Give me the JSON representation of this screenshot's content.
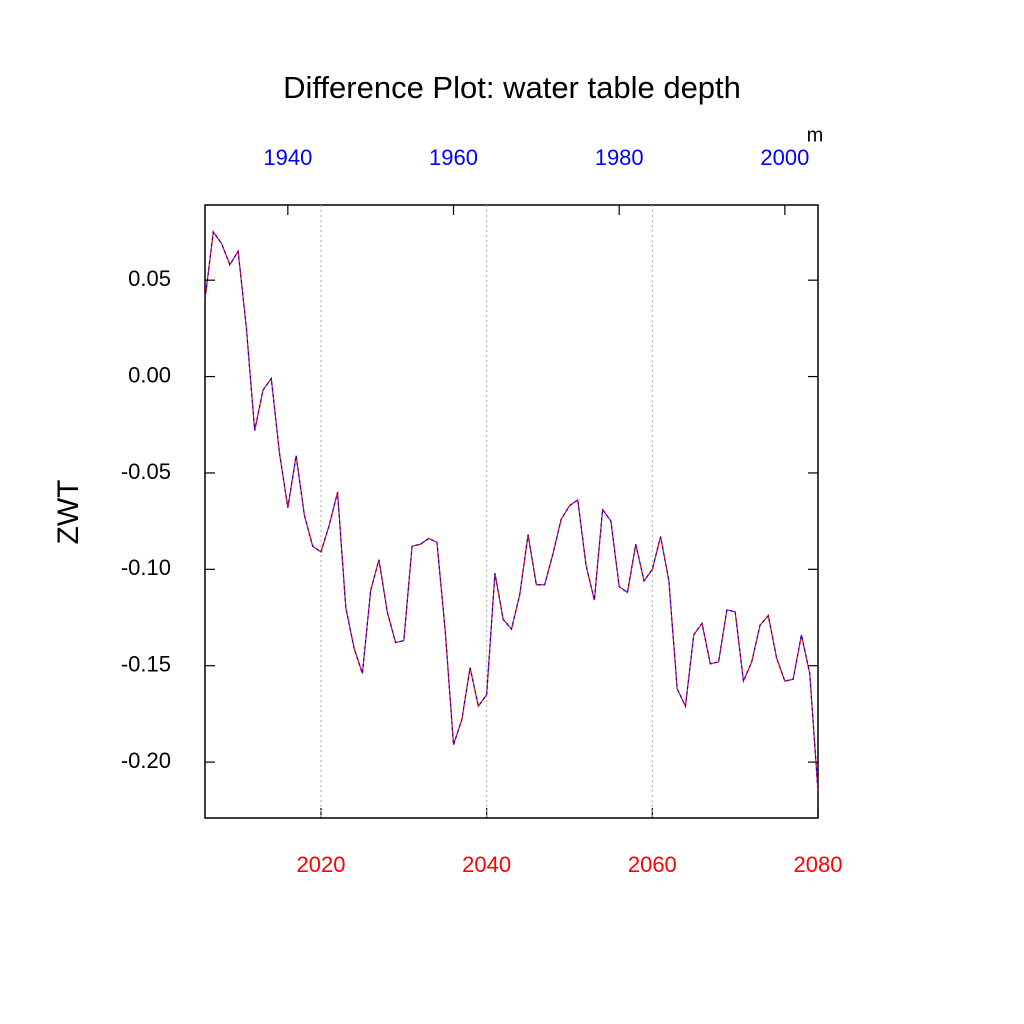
{
  "chart_data": {
    "type": "line",
    "title": "Difference Plot: water table depth",
    "y_label": "ZWT",
    "units": "m",
    "x": [
      2006,
      2007,
      2008,
      2009,
      2010,
      2011,
      2012,
      2013,
      2014,
      2015,
      2016,
      2017,
      2018,
      2019,
      2020,
      2021,
      2022,
      2023,
      2024,
      2025,
      2026,
      2027,
      2028,
      2029,
      2030,
      2031,
      2032,
      2033,
      2034,
      2035,
      2036,
      2037,
      2038,
      2039,
      2040,
      2041,
      2042,
      2043,
      2044,
      2045,
      2046,
      2047,
      2048,
      2049,
      2050,
      2051,
      2052,
      2053,
      2054,
      2055,
      2056,
      2057,
      2058,
      2059,
      2060,
      2061,
      2062,
      2063,
      2064,
      2065,
      2066,
      2067,
      2068,
      2069,
      2070,
      2071,
      2072,
      2073,
      2074,
      2075,
      2076,
      2077,
      2078,
      2079,
      2080
    ],
    "series": [
      {
        "color": "#ff0000",
        "dash_color": "#0000ff",
        "values": [
          0.04,
          0.075,
          0.069,
          0.058,
          0.065,
          0.025,
          -0.028,
          -0.007,
          -0.001,
          -0.04,
          -0.068,
          -0.041,
          -0.072,
          -0.088,
          -0.091,
          -0.077,
          -0.06,
          -0.12,
          -0.141,
          -0.154,
          -0.111,
          -0.095,
          -0.122,
          -0.138,
          -0.137,
          -0.088,
          -0.087,
          -0.084,
          -0.086,
          -0.132,
          -0.191,
          -0.178,
          -0.151,
          -0.171,
          -0.165,
          -0.102,
          -0.126,
          -0.131,
          -0.113,
          -0.082,
          -0.108,
          -0.108,
          -0.092,
          -0.074,
          -0.067,
          -0.064,
          -0.098,
          -0.116,
          -0.069,
          -0.075,
          -0.109,
          -0.112,
          -0.087,
          -0.106,
          -0.1,
          -0.083,
          -0.106,
          -0.162,
          -0.171,
          -0.134,
          -0.128,
          -0.149,
          -0.148,
          -0.121,
          -0.122,
          -0.158,
          -0.148,
          -0.129,
          -0.124,
          -0.146,
          -0.158,
          -0.157,
          -0.134,
          -0.154,
          -0.215
        ]
      }
    ],
    "xlim": [
      2006,
      2080
    ],
    "xticks": [
      2020,
      2040,
      2060,
      2080
    ],
    "xtick_color": "#ff0000",
    "x2lim": [
      1930,
      2004
    ],
    "x2ticks": [
      1940,
      1960,
      1980,
      2000
    ],
    "x2tick_color": "#0000ff",
    "ylim": [
      -0.229,
      0.089
    ],
    "yticks": [
      0.05,
      {
        "value": 0,
        "label": "0.00"
      },
      -0.05,
      {
        "value": -0.1,
        "label": "-0.10"
      },
      -0.15,
      {
        "value": -0.2,
        "label": "-0.20"
      }
    ],
    "grid": true
  }
}
